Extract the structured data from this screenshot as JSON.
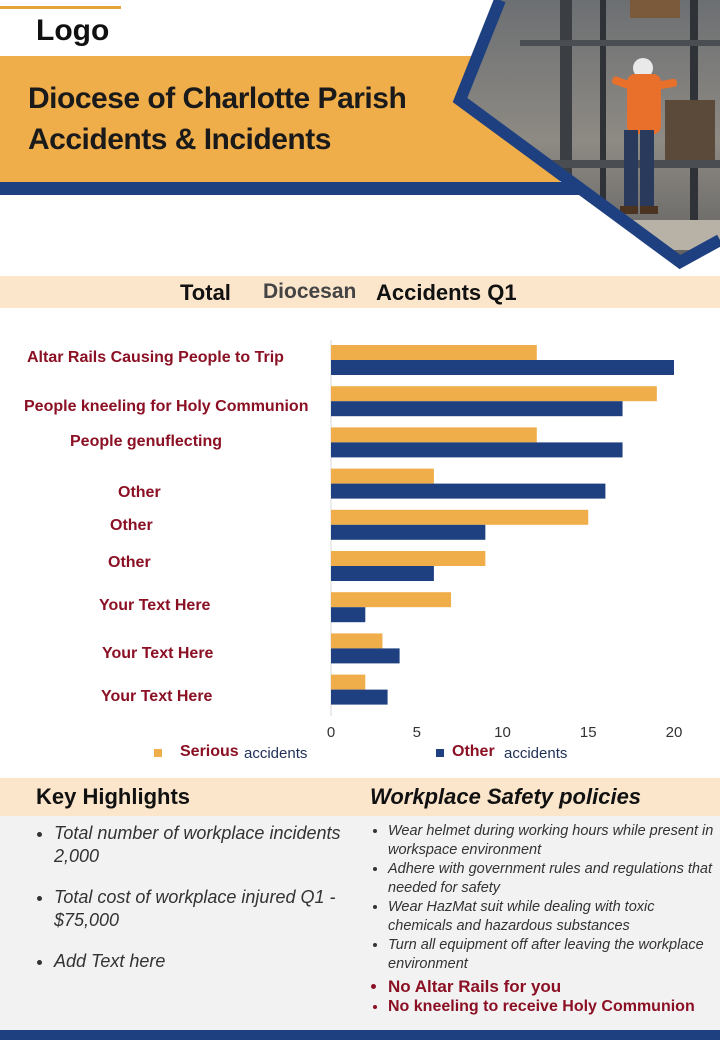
{
  "logo": "Logo",
  "title": "Diocese of Charlotte Parish Accidents & Incidents",
  "chart_header": {
    "w1": "Total",
    "w2": "Diocesan",
    "w3": "Accidents Q1"
  },
  "colors": {
    "serious": "#f0ae4b",
    "other": "#1f4080",
    "accent": "#f0ae4b",
    "navy": "#1f4080",
    "label": "#8b1024"
  },
  "chart_data": {
    "type": "bar",
    "orientation": "horizontal",
    "categories": [
      "Altar Rails Causing People to Trip",
      "People kneeling for Holy Communion",
      "People genuflecting",
      "Other",
      "Other",
      "Other",
      "Your Text Here",
      "Your Text Here",
      "Your Text Here"
    ],
    "series": [
      {
        "name": "Serious accidents",
        "values": [
          12,
          19,
          12,
          6,
          15,
          9,
          7,
          3,
          2
        ]
      },
      {
        "name": "Other accidents",
        "values": [
          20,
          17,
          17,
          16,
          9,
          6,
          2,
          4,
          3.3
        ]
      }
    ],
    "xlim": [
      0,
      20
    ],
    "xticks": [
      "0",
      "5",
      "10",
      "15",
      "20"
    ],
    "legend": {
      "serious_a": "Serious",
      "serious_b": "accidents",
      "other_a": "Other",
      "other_b": "accidents",
      "placement": "bottom"
    }
  },
  "key_highlights": {
    "title": "Key Highlights",
    "items": [
      "Total number of workplace incidents 2,000",
      "Total cost of workplace injured Q1 - $75,000",
      "Add Text here"
    ]
  },
  "workplace_safety": {
    "title": "Workplace Safety policies",
    "items": [
      "Wear helmet during  working hours  while present in workspace environment",
      "Adhere with government rules and regulations that needed for safety",
      "Wear HazMat suit while dealing with toxic chemicals and  hazardous substances",
      "Turn all equipment off after leaving the workplace environment",
      "No Altar Rails for you",
      "No kneeling to receive Holy Communion"
    ]
  }
}
